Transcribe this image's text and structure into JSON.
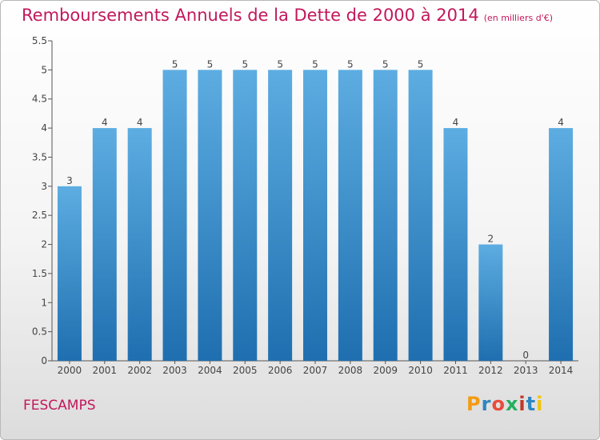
{
  "header": {
    "title": "Remboursements Annuels de la Dette de 2000 à 2014",
    "unit": "(en milliers d'€)"
  },
  "footer": {
    "city": "FESCAMPS",
    "brand": "Proxiti",
    "brand_colors": [
      "#f39c12",
      "#2e86c1",
      "#e74c3c",
      "#27ae60",
      "#c0392b",
      "#2e86c1",
      "#f1c40f"
    ]
  },
  "colors": {
    "title": "#c2185b",
    "bar_top": "#5dade2",
    "bar_bottom": "#1f6fb0",
    "axis": "#555555"
  },
  "chart_data": {
    "type": "bar",
    "categories": [
      "2000",
      "2001",
      "2002",
      "2003",
      "2004",
      "2005",
      "2006",
      "2007",
      "2008",
      "2009",
      "2010",
      "2011",
      "2012",
      "2013",
      "2014"
    ],
    "values": [
      3,
      4,
      4,
      5,
      5,
      5,
      5,
      5,
      5,
      5,
      5,
      4,
      2,
      0,
      4
    ],
    "data_labels": [
      "3",
      "4",
      "4",
      "5",
      "5",
      "5",
      "5",
      "5",
      "5",
      "5",
      "5",
      "4",
      "2",
      "0",
      "4"
    ],
    "y_ticks": [
      "0",
      "0.5",
      "1",
      "1.5",
      "2",
      "2.5",
      "3",
      "3.5",
      "4",
      "4.5",
      "5",
      "5.5"
    ],
    "ylim": [
      0,
      5.5
    ],
    "grid": false,
    "legend": "none"
  }
}
